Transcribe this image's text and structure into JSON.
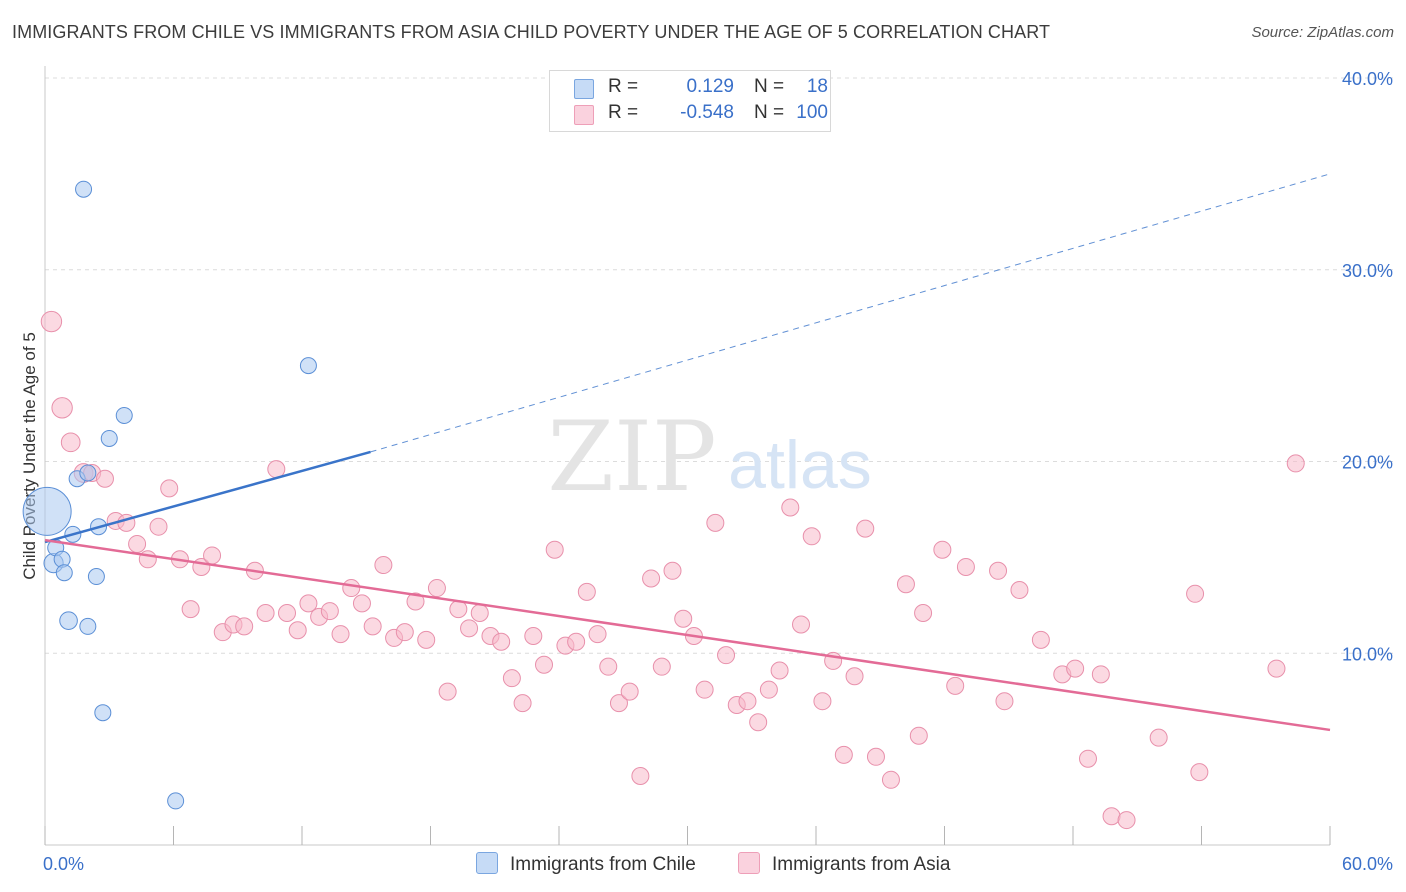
{
  "title": "IMMIGRANTS FROM CHILE VS IMMIGRANTS FROM ASIA CHILD POVERTY UNDER THE AGE OF 5 CORRELATION CHART",
  "source": "Source: ZipAtlas.com",
  "watermark": {
    "zip": "ZIP",
    "atlas": "atlas"
  },
  "legend": {
    "rows": [
      {
        "r_label": "R =",
        "r_value": "0.129",
        "n_label": "N =",
        "n_value": "18",
        "color": "#a9c8f0"
      },
      {
        "r_label": "R =",
        "r_value": "-0.548",
        "n_label": "N =",
        "n_value": "100",
        "color": "#f7b9cb"
      }
    ]
  },
  "bottom_legend": {
    "chile": "Immigrants from Chile",
    "asia": "Immigrants from Asia"
  },
  "colors": {
    "chile_fill": "#a9c8f0",
    "chile_stroke": "#5b8fd6",
    "chile_line": "#3a74c9",
    "asia_fill": "#f7b9cb",
    "asia_stroke": "#e890ab",
    "asia_line": "#e36b96",
    "tick_text": "#3a70c9",
    "grid": "#dcdcdc"
  },
  "chart_data": {
    "type": "scatter",
    "title": "IMMIGRANTS FROM CHILE VS IMMIGRANTS FROM ASIA CHILD POVERTY UNDER THE AGE OF 5 CORRELATION CHART",
    "xlabel": "",
    "ylabel": "Child Poverty Under the Age of 5",
    "xlim": [
      0,
      60
    ],
    "ylim": [
      0,
      40
    ],
    "x_tick_labels": [
      "0.0%",
      "60.0%"
    ],
    "y_ticks": [
      10,
      20,
      30,
      40
    ],
    "y_tick_labels": [
      "10.0%",
      "20.0%",
      "30.0%",
      "40.0%"
    ],
    "grid": true,
    "series": [
      {
        "name": "Immigrants from Chile",
        "R": 0.129,
        "N": 18,
        "points": [
          {
            "x": 0.1,
            "y": 17.4,
            "s": 3
          },
          {
            "x": 0.4,
            "y": 14.7,
            "s": 1.2
          },
          {
            "x": 0.5,
            "y": 15.5,
            "s": 1
          },
          {
            "x": 0.8,
            "y": 14.9,
            "s": 1
          },
          {
            "x": 0.9,
            "y": 14.2,
            "s": 1
          },
          {
            "x": 1.1,
            "y": 11.7,
            "s": 1.1
          },
          {
            "x": 1.3,
            "y": 16.2,
            "s": 1
          },
          {
            "x": 1.5,
            "y": 19.1,
            "s": 1
          },
          {
            "x": 1.8,
            "y": 34.2,
            "s": 1
          },
          {
            "x": 2.0,
            "y": 11.4,
            "s": 1
          },
          {
            "x": 2.0,
            "y": 19.4,
            "s": 1
          },
          {
            "x": 2.4,
            "y": 14.0,
            "s": 1
          },
          {
            "x": 2.5,
            "y": 16.6,
            "s": 1
          },
          {
            "x": 2.7,
            "y": 6.9,
            "s": 1
          },
          {
            "x": 3.0,
            "y": 21.2,
            "s": 1
          },
          {
            "x": 3.7,
            "y": 22.4,
            "s": 1
          },
          {
            "x": 6.1,
            "y": 2.3,
            "s": 1
          },
          {
            "x": 12.3,
            "y": 25.0,
            "s": 1
          }
        ],
        "trend": {
          "x0": 0,
          "y0": 15.8,
          "x1": 15.2,
          "y1": 20.5,
          "dash_x1": 60,
          "dash_y1": 35.0
        }
      },
      {
        "name": "Immigrants from Asia",
        "R": -0.548,
        "N": 100,
        "points": [
          {
            "x": 0.3,
            "y": 27.3,
            "s": 1.2
          },
          {
            "x": 0.8,
            "y": 22.8,
            "s": 1.2
          },
          {
            "x": 1.2,
            "y": 21.0,
            "s": 1.1
          },
          {
            "x": 1.8,
            "y": 19.4,
            "s": 1.1
          },
          {
            "x": 2.2,
            "y": 19.4,
            "s": 1
          },
          {
            "x": 2.8,
            "y": 19.1,
            "s": 1
          },
          {
            "x": 3.3,
            "y": 16.9,
            "s": 1
          },
          {
            "x": 3.8,
            "y": 16.8,
            "s": 1
          },
          {
            "x": 4.3,
            "y": 15.7,
            "s": 1
          },
          {
            "x": 4.8,
            "y": 14.9,
            "s": 1
          },
          {
            "x": 5.3,
            "y": 16.6,
            "s": 1
          },
          {
            "x": 5.8,
            "y": 18.6,
            "s": 1
          },
          {
            "x": 6.3,
            "y": 14.9,
            "s": 1
          },
          {
            "x": 6.8,
            "y": 12.3,
            "s": 1
          },
          {
            "x": 7.3,
            "y": 14.5,
            "s": 1
          },
          {
            "x": 7.8,
            "y": 15.1,
            "s": 1
          },
          {
            "x": 8.3,
            "y": 11.1,
            "s": 1
          },
          {
            "x": 8.8,
            "y": 11.5,
            "s": 1
          },
          {
            "x": 9.3,
            "y": 11.4,
            "s": 1
          },
          {
            "x": 9.8,
            "y": 14.3,
            "s": 1
          },
          {
            "x": 10.3,
            "y": 12.1,
            "s": 1
          },
          {
            "x": 10.8,
            "y": 19.6,
            "s": 1
          },
          {
            "x": 11.3,
            "y": 12.1,
            "s": 1
          },
          {
            "x": 11.8,
            "y": 11.2,
            "s": 1
          },
          {
            "x": 12.3,
            "y": 12.6,
            "s": 1
          },
          {
            "x": 12.8,
            "y": 11.9,
            "s": 1
          },
          {
            "x": 13.3,
            "y": 12.2,
            "s": 1
          },
          {
            "x": 13.8,
            "y": 11.0,
            "s": 1
          },
          {
            "x": 14.3,
            "y": 13.4,
            "s": 1
          },
          {
            "x": 14.8,
            "y": 12.6,
            "s": 1
          },
          {
            "x": 15.3,
            "y": 11.4,
            "s": 1
          },
          {
            "x": 15.8,
            "y": 14.6,
            "s": 1
          },
          {
            "x": 16.3,
            "y": 10.8,
            "s": 1
          },
          {
            "x": 16.8,
            "y": 11.1,
            "s": 1
          },
          {
            "x": 17.3,
            "y": 12.7,
            "s": 1
          },
          {
            "x": 17.8,
            "y": 10.7,
            "s": 1
          },
          {
            "x": 18.3,
            "y": 13.4,
            "s": 1
          },
          {
            "x": 18.8,
            "y": 8.0,
            "s": 1
          },
          {
            "x": 19.3,
            "y": 12.3,
            "s": 1
          },
          {
            "x": 19.8,
            "y": 11.3,
            "s": 1
          },
          {
            "x": 20.3,
            "y": 12.1,
            "s": 1
          },
          {
            "x": 20.8,
            "y": 10.9,
            "s": 1
          },
          {
            "x": 21.3,
            "y": 10.6,
            "s": 1
          },
          {
            "x": 21.8,
            "y": 8.7,
            "s": 1
          },
          {
            "x": 22.3,
            "y": 7.4,
            "s": 1
          },
          {
            "x": 22.8,
            "y": 10.9,
            "s": 1
          },
          {
            "x": 23.3,
            "y": 9.4,
            "s": 1
          },
          {
            "x": 23.8,
            "y": 15.4,
            "s": 1
          },
          {
            "x": 24.3,
            "y": 10.4,
            "s": 1
          },
          {
            "x": 24.8,
            "y": 10.6,
            "s": 1
          },
          {
            "x": 25.3,
            "y": 13.2,
            "s": 1
          },
          {
            "x": 25.8,
            "y": 11.0,
            "s": 1
          },
          {
            "x": 26.3,
            "y": 9.3,
            "s": 1
          },
          {
            "x": 26.8,
            "y": 7.4,
            "s": 1
          },
          {
            "x": 27.3,
            "y": 8.0,
            "s": 1
          },
          {
            "x": 27.8,
            "y": 3.6,
            "s": 1
          },
          {
            "x": 28.3,
            "y": 13.9,
            "s": 1
          },
          {
            "x": 28.8,
            "y": 9.3,
            "s": 1
          },
          {
            "x": 29.3,
            "y": 14.3,
            "s": 1
          },
          {
            "x": 29.8,
            "y": 11.8,
            "s": 1
          },
          {
            "x": 30.3,
            "y": 10.9,
            "s": 1
          },
          {
            "x": 30.8,
            "y": 8.1,
            "s": 1
          },
          {
            "x": 31.3,
            "y": 16.8,
            "s": 1
          },
          {
            "x": 31.8,
            "y": 9.9,
            "s": 1
          },
          {
            "x": 32.3,
            "y": 7.3,
            "s": 1
          },
          {
            "x": 32.8,
            "y": 7.5,
            "s": 1
          },
          {
            "x": 33.3,
            "y": 6.4,
            "s": 1
          },
          {
            "x": 33.8,
            "y": 8.1,
            "s": 1
          },
          {
            "x": 34.3,
            "y": 9.1,
            "s": 1
          },
          {
            "x": 34.8,
            "y": 17.6,
            "s": 1
          },
          {
            "x": 35.3,
            "y": 11.5,
            "s": 1
          },
          {
            "x": 35.8,
            "y": 16.1,
            "s": 1
          },
          {
            "x": 36.3,
            "y": 7.5,
            "s": 1
          },
          {
            "x": 36.8,
            "y": 9.6,
            "s": 1
          },
          {
            "x": 37.3,
            "y": 4.7,
            "s": 1
          },
          {
            "x": 37.8,
            "y": 8.8,
            "s": 1
          },
          {
            "x": 38.3,
            "y": 16.5,
            "s": 1
          },
          {
            "x": 38.8,
            "y": 4.6,
            "s": 1
          },
          {
            "x": 39.5,
            "y": 3.4,
            "s": 1
          },
          {
            "x": 40.2,
            "y": 13.6,
            "s": 1
          },
          {
            "x": 40.8,
            "y": 5.7,
            "s": 1
          },
          {
            "x": 41.0,
            "y": 12.1,
            "s": 1
          },
          {
            "x": 41.9,
            "y": 15.4,
            "s": 1
          },
          {
            "x": 42.5,
            "y": 8.3,
            "s": 1
          },
          {
            "x": 43.0,
            "y": 14.5,
            "s": 1
          },
          {
            "x": 44.5,
            "y": 14.3,
            "s": 1
          },
          {
            "x": 44.8,
            "y": 7.5,
            "s": 1
          },
          {
            "x": 45.5,
            "y": 13.3,
            "s": 1
          },
          {
            "x": 46.5,
            "y": 10.7,
            "s": 1
          },
          {
            "x": 47.5,
            "y": 8.9,
            "s": 1
          },
          {
            "x": 48.1,
            "y": 9.2,
            "s": 1
          },
          {
            "x": 48.7,
            "y": 4.5,
            "s": 1
          },
          {
            "x": 49.3,
            "y": 8.9,
            "s": 1
          },
          {
            "x": 49.8,
            "y": 1.5,
            "s": 1
          },
          {
            "x": 50.5,
            "y": 1.3,
            "s": 1
          },
          {
            "x": 52.0,
            "y": 5.6,
            "s": 1
          },
          {
            "x": 53.7,
            "y": 13.1,
            "s": 1
          },
          {
            "x": 53.9,
            "y": 3.8,
            "s": 1
          },
          {
            "x": 57.5,
            "y": 9.2,
            "s": 1
          },
          {
            "x": 58.4,
            "y": 19.9,
            "s": 1
          }
        ],
        "trend": {
          "x0": 0,
          "y0": 15.9,
          "x1": 60,
          "y1": 6.0
        }
      }
    ]
  }
}
